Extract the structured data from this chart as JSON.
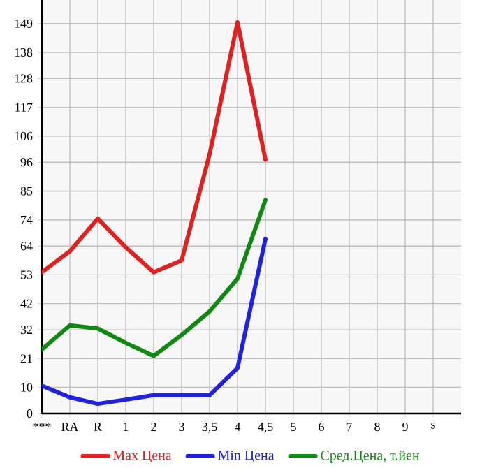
{
  "chart_data": {
    "type": "line",
    "categories": [
      "***",
      "RA",
      "R",
      "1",
      "2",
      "3",
      "3,5",
      "4",
      "4,5",
      "5",
      "6",
      "7",
      "8",
      "9",
      "s"
    ],
    "series": [
      {
        "name": "Max Цена",
        "color": "#dd2222",
        "values": [
          54,
          62,
          74.5,
          63.5,
          54,
          58.5,
          99,
          149.5,
          97,
          null,
          null,
          null,
          null,
          null,
          null
        ]
      },
      {
        "name": "Min Цена",
        "color": "#2222dd",
        "values": [
          10.6,
          6.2,
          3.7,
          5.3,
          7,
          7,
          7,
          17.4,
          66.7,
          null,
          null,
          null,
          null,
          null,
          null
        ]
      },
      {
        "name": "Сред.Цена, т.йен",
        "color": "#118811",
        "values": [
          24.5,
          33.7,
          32.5,
          27,
          22,
          30,
          39,
          51.5,
          81.6,
          null,
          null,
          null,
          null,
          null,
          null
        ]
      }
    ],
    "ylim": [
      0,
      158
    ],
    "yticks": [
      0,
      10,
      21,
      32,
      42,
      53,
      64,
      74,
      85,
      96,
      106,
      117,
      128,
      138,
      149
    ],
    "grid": true,
    "legend": "bottom",
    "marker": "none",
    "line_style": "solid"
  }
}
